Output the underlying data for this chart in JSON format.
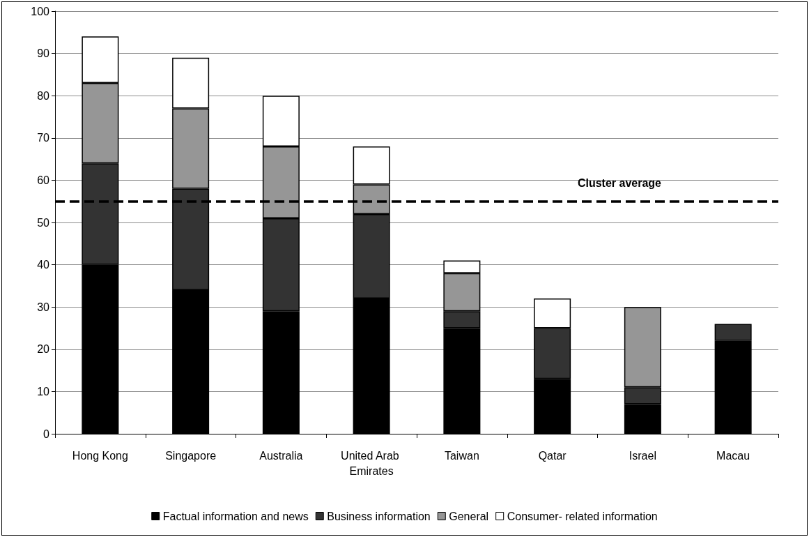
{
  "chart_data": {
    "type": "bar",
    "stacked": true,
    "categories": [
      "Hong Kong",
      "Singapore",
      "Australia",
      "United Arab Emirates",
      "Taiwan",
      "Qatar",
      "Israel",
      "Macau"
    ],
    "series": [
      {
        "name": "Factual information and news",
        "color": "#000000",
        "values": [
          40,
          34,
          29,
          32,
          25,
          13,
          7,
          22
        ]
      },
      {
        "name": "Business information",
        "color": "#333333",
        "values": [
          24,
          24,
          22,
          20,
          4,
          12,
          4,
          4
        ]
      },
      {
        "name": "General",
        "color": "#969696",
        "values": [
          19,
          19,
          17,
          7,
          9,
          null,
          19,
          null
        ]
      },
      {
        "name": "Consumer- related information",
        "color": "#ffffff",
        "values": [
          11,
          12,
          12,
          9,
          3,
          7,
          null,
          null
        ]
      }
    ],
    "ylim": [
      0,
      100
    ],
    "yticks": [
      0,
      10,
      20,
      30,
      40,
      50,
      60,
      70,
      80,
      90,
      100
    ],
    "grid": "y",
    "legend": "bottom",
    "ref_lines": [
      {
        "axis": "y",
        "value": 55,
        "label": "Cluster average",
        "color": "#000000",
        "line_style": "dashed"
      }
    ]
  }
}
